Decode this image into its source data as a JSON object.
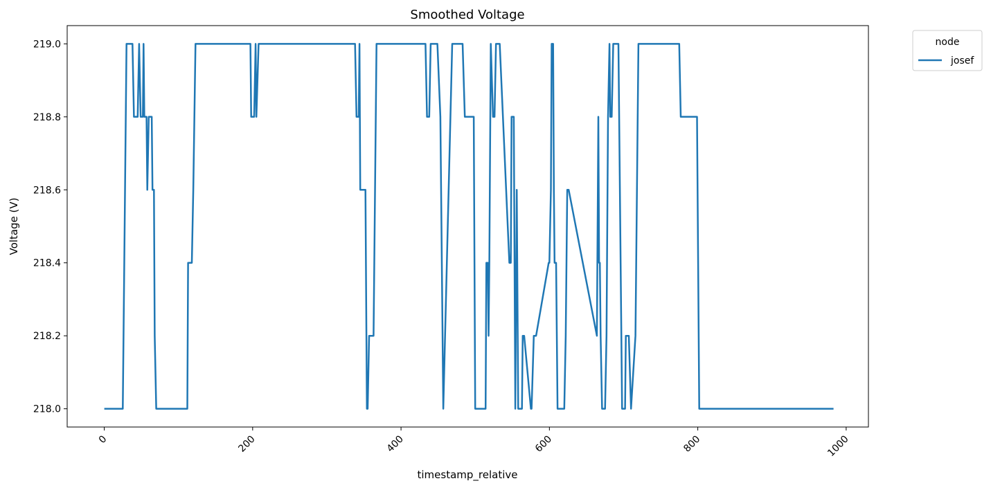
{
  "chart_data": {
    "type": "line",
    "title": "Smoothed Voltage",
    "xlabel": "timestamp_relative",
    "ylabel": "Voltage (V)",
    "xlim": [
      -50,
      1030
    ],
    "ylim": [
      217.95,
      219.05
    ],
    "x_ticks": [
      0,
      200,
      400,
      600,
      800,
      1000
    ],
    "x_tick_labels": [
      "0",
      "200",
      "400",
      "600",
      "800",
      "1000"
    ],
    "y_ticks": [
      218.0,
      218.2,
      218.4,
      218.6,
      218.8,
      219.0
    ],
    "y_tick_labels": [
      "218.0",
      "218.2",
      "218.4",
      "218.6",
      "218.8",
      "219.0"
    ],
    "grid": false,
    "legend": {
      "title": "node",
      "placement": "outside-top-right"
    },
    "colors": {
      "series": "#1f77b4"
    },
    "series": [
      {
        "name": "josef",
        "x": [
          0,
          25,
          30,
          38,
          40,
          45,
          47,
          49,
          51,
          52,
          53,
          54,
          55,
          57,
          58,
          60,
          62,
          64,
          65,
          67,
          68,
          70,
          112,
          113,
          118,
          120,
          123,
          197,
          198,
          202,
          204,
          205,
          208,
          338,
          340,
          343,
          344,
          345,
          347,
          352,
          354,
          355,
          357,
          359,
          363,
          367,
          433,
          435,
          438,
          440,
          449,
          453,
          457,
          469,
          483,
          486,
          495,
          497,
          498,
          500,
          514,
          515,
          517,
          518,
          519,
          521,
          524,
          526,
          528,
          530,
          533,
          546,
          548,
          549,
          552,
          554,
          556,
          558,
          559,
          561,
          563,
          564,
          566,
          575,
          576,
          579,
          582,
          599,
          600,
          602,
          603,
          605,
          606,
          607,
          609,
          611,
          617,
          620,
          622,
          624,
          626,
          664,
          666,
          667,
          668,
          669,
          671,
          674,
          675,
          677,
          679,
          681,
          682,
          684,
          686,
          687,
          690,
          691,
          693,
          698,
          700,
          702,
          703,
          707,
          710,
          716,
          720,
          767,
          771,
          775,
          777,
          799,
          802,
          823,
          824,
          825,
          827,
          828,
          830,
          831,
          834,
          836,
          839,
          842,
          868,
          875,
          881,
          885,
          895,
          899,
          900,
          903,
          905,
          909,
          913,
          983
        ],
        "values": [
          218.0,
          218.0,
          219.0,
          219.0,
          218.8,
          218.8,
          219.0,
          218.8,
          218.8,
          218.8,
          219.0,
          218.8,
          218.8,
          218.8,
          218.6,
          218.8,
          218.8,
          218.8,
          218.6,
          218.6,
          218.2,
          218.0,
          218.0,
          218.4,
          218.4,
          218.6,
          219.0,
          219.0,
          218.8,
          218.8,
          219.0,
          218.8,
          219.0,
          219.0,
          218.8,
          218.8,
          219.0,
          218.6,
          218.6,
          218.6,
          218.0,
          218.0,
          218.2,
          218.2,
          218.2,
          219.0,
          219.0,
          218.8,
          218.8,
          219.0,
          219.0,
          218.8,
          218.0,
          219.0,
          219.0,
          218.8,
          218.8,
          218.8,
          218.8,
          218.0,
          218.0,
          218.4,
          218.4,
          218.2,
          218.4,
          219.0,
          218.8,
          218.8,
          219.0,
          219.0,
          219.0,
          218.4,
          218.4,
          218.8,
          218.8,
          218.0,
          218.6,
          218.0,
          218.0,
          218.0,
          218.0,
          218.2,
          218.2,
          218.0,
          218.0,
          218.2,
          218.2,
          218.4,
          218.4,
          218.6,
          219.0,
          219.0,
          218.6,
          218.4,
          218.4,
          218.0,
          218.0,
          218.0,
          218.2,
          218.6,
          218.6,
          218.2,
          218.8,
          218.4,
          218.4,
          218.2,
          218.0,
          218.0,
          218.0,
          218.2,
          218.8,
          219.0,
          218.8,
          218.8,
          219.0,
          219.0,
          219.0,
          219.0,
          219.0,
          218.0,
          218.0,
          218.0,
          218.2,
          218.2,
          218.0,
          218.2,
          219.0,
          219.0,
          219.0,
          219.0,
          218.8,
          218.8,
          218.0,
          218.0,
          218.0,
          218.0,
          218.0,
          218.0,
          218.0,
          218.0,
          218.0,
          218.0,
          218.0,
          218.0,
          218.0,
          218.0,
          218.0,
          218.0,
          218.0,
          218.0,
          218.0,
          218.0,
          218.0,
          218.0,
          218.0,
          218.0
        ]
      }
    ]
  }
}
